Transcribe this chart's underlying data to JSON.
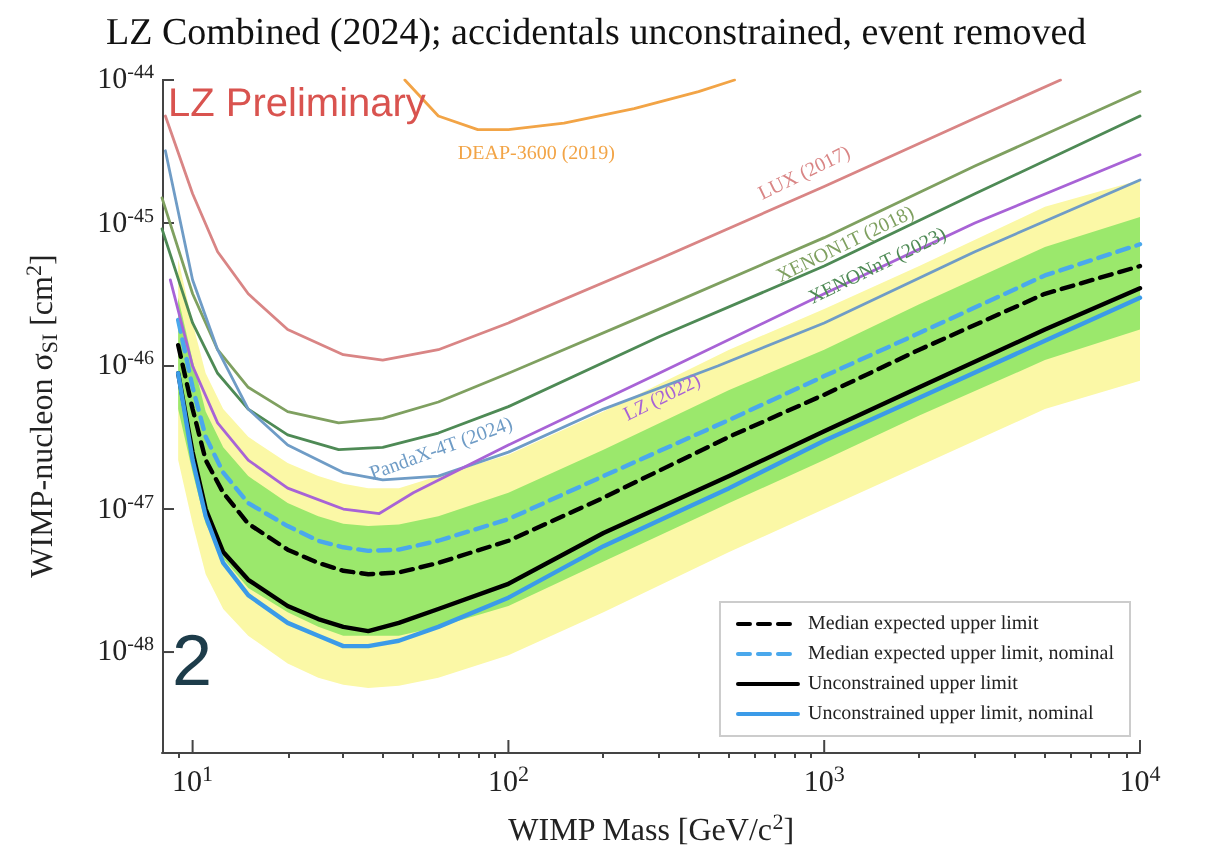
{
  "chart_data": {
    "type": "line",
    "title": "LZ Combined (2024); accidentals unconstrained, event removed",
    "xlabel": "WIMP Mass [GeV/c$^{2}$]",
    "ylabel": "WIMP-nucleon σ$_{SI}$ [cm$^{2}$]",
    "log": "xy",
    "grid": false,
    "legend": "bottom right",
    "marker": "none",
    "xlim": [
      8,
      10000
    ],
    "xticks": [
      {
        "value": 10,
        "label": "10$^{1}$"
      },
      {
        "value": 100,
        "label": "10$^{2}$"
      },
      {
        "value": 1000,
        "label": "10$^{3}$"
      },
      {
        "value": 10000,
        "label": "10$^{4}$"
      }
    ],
    "ylim": [
      2e-49,
      1e-44
    ],
    "yticks": [
      {
        "value": 1e-48,
        "label": "10$^{-48}$"
      },
      {
        "value": 1e-47,
        "label": "10$^{-47}$"
      },
      {
        "value": 1e-46,
        "label": "10$^{-46}$"
      },
      {
        "value": 1e-45,
        "label": "10$^{-45}$"
      },
      {
        "value": 1e-44,
        "label": "10$^{-44}$"
      }
    ],
    "annotations": [
      "LZ Preliminary",
      "2"
    ],
    "series": [
      {
        "type": "area",
        "color": "#fbf8a6",
        "x": [
          9,
          10,
          11,
          12.5,
          15,
          20,
          25,
          30,
          36,
          45,
          60,
          100,
          200,
          500,
          1000,
          2000,
          5000,
          10000
        ],
        "values": [
          null,
          null,
          null,
          null,
          null,
          null,
          null,
          null,
          null,
          null,
          null,
          null,
          null,
          null,
          null,
          null,
          null,
          null
        ],
        "lower": [
          2.2e-47,
          7.9e-48,
          3.5e-48,
          2e-48,
          1.3e-48,
          8.3e-49,
          6.6e-49,
          5.9e-49,
          5.6e-49,
          5.8e-49,
          6.6e-49,
          9.5e-49,
          1.9e-48,
          5e-48,
          1e-47,
          2e-47,
          5e-47,
          7.9e-47
        ],
        "upper": [
          5.6e-46,
          2e-46,
          8.9e-47,
          5e-47,
          3.2e-47,
          2.1e-47,
          1.7e-47,
          1.5e-47,
          1.4e-47,
          1.4e-47,
          1.7e-47,
          2.4e-47,
          4.8e-47,
          1.3e-46,
          2.5e-46,
          5e-46,
          1.3e-45,
          2e-45
        ]
      },
      {
        "type": "area",
        "color": "#9be86c",
        "x": [
          9,
          10,
          11,
          12.5,
          15,
          20,
          25,
          30,
          36,
          45,
          60,
          100,
          200,
          500,
          1000,
          2000,
          5000,
          10000
        ],
        "values": [
          null,
          null,
          null,
          null,
          null,
          null,
          null,
          null,
          null,
          null,
          null,
          null,
          null,
          null,
          null,
          null,
          null,
          null
        ],
        "lower": [
          5e-47,
          1.8e-47,
          7.9e-48,
          4.5e-48,
          2.8e-48,
          1.9e-48,
          1.5e-48,
          1.3e-48,
          1.3e-48,
          1.3e-48,
          1.5e-48,
          2.1e-48,
          4.3e-48,
          1.1e-47,
          2.2e-47,
          4.5e-47,
          1.1e-46,
          1.8e-46
        ],
        "upper": [
          3e-46,
          1.1e-46,
          4.8e-47,
          2.7e-47,
          1.7e-47,
          1.1e-47,
          8.9e-48,
          7.9e-48,
          7.6e-48,
          7.8e-48,
          8.9e-48,
          1.3e-47,
          2.6e-47,
          6.8e-47,
          1.3e-46,
          2.7e-46,
          6.8e-46,
          1.1e-45
        ]
      },
      {
        "name": "Median expected upper limit",
        "color": "#000000",
        "line_style": "dashed",
        "x": [
          9,
          10,
          11,
          12.5,
          15,
          20,
          25,
          30,
          36,
          45,
          60,
          100,
          200,
          500,
          1000,
          2000,
          5000,
          10000
        ],
        "values": [
          1.4e-46,
          5e-47,
          2.2e-47,
          1.3e-47,
          7.9e-48,
          5.2e-48,
          4.2e-48,
          3.7e-48,
          3.5e-48,
          3.6e-48,
          4.2e-48,
          6e-48,
          1.2e-47,
          3.2e-47,
          6.3e-47,
          1.3e-46,
          3.2e-46,
          5e-46
        ]
      },
      {
        "name": "Median expected upper limit, nominal",
        "color": "#4aa8ec",
        "line_style": "dashed",
        "x": [
          9,
          10,
          11,
          12.5,
          15,
          20,
          25,
          30,
          36,
          45,
          60,
          100,
          200,
          500,
          1000,
          2000,
          5000,
          10000
        ],
        "values": [
          2.1e-46,
          7.1e-47,
          3.2e-47,
          1.8e-47,
          1.1e-47,
          7.6e-48,
          6e-48,
          5.4e-48,
          5.1e-48,
          5.2e-48,
          6e-48,
          8.5e-48,
          1.7e-47,
          4.2e-47,
          8.5e-47,
          1.7e-46,
          4.3e-46,
          7.1e-46
        ]
      },
      {
        "name": "Unconstrained upper limit",
        "color": "#000000",
        "line_style": "solid",
        "x": [
          9,
          10,
          11,
          12.5,
          15,
          20,
          25,
          30,
          36,
          45,
          60,
          100,
          200,
          500,
          1000,
          2000,
          5000,
          10000
        ],
        "values": [
          8.9e-47,
          2.5e-47,
          1e-47,
          5e-48,
          3.2e-48,
          2.1e-48,
          1.7e-48,
          1.5e-48,
          1.4e-48,
          1.6e-48,
          2e-48,
          3e-48,
          6.8e-48,
          1.7e-47,
          3.5e-47,
          7.1e-47,
          1.8e-46,
          3.5e-46
        ]
      },
      {
        "name": "Unconstrained upper limit, nominal",
        "color": "#3b9be8",
        "line_style": "solid",
        "x": [
          9,
          10,
          11,
          12.5,
          15,
          20,
          25,
          30,
          36,
          45,
          60,
          100,
          200,
          500,
          1000,
          2000,
          5000,
          10000
        ],
        "values": [
          8.9e-47,
          2.2e-47,
          8.9e-48,
          4.2e-48,
          2.5e-48,
          1.6e-48,
          1.3e-48,
          1.1e-48,
          1.1e-48,
          1.2e-48,
          1.5e-48,
          2.4e-48,
          5.5e-48,
          1.4e-47,
          3e-47,
          6e-47,
          1.5e-46,
          3e-46
        ]
      },
      {
        "name": "LUX (2017)",
        "color": "#d98585",
        "line_style": "solid",
        "x": [
          8.2,
          10,
          12,
          15,
          20,
          30,
          40,
          60,
          100,
          300,
          1000,
          3000,
          5600
        ],
        "values": [
          5.6e-45,
          1.6e-45,
          6.3e-46,
          3.2e-46,
          1.8e-46,
          1.2e-46,
          1.1e-46,
          1.3e-46,
          2e-46,
          5.6e-46,
          1.8e-45,
          5.4e-45,
          1e-44
        ]
      },
      {
        "name": "XENON1T (2018)",
        "color": "#7fa060",
        "line_style": "solid",
        "x": [
          8,
          10,
          12,
          15,
          20,
          29,
          40,
          60,
          100,
          300,
          1000,
          3000,
          10000
        ],
        "values": [
          1.5e-45,
          3.2e-46,
          1.3e-46,
          7.1e-47,
          4.8e-47,
          4e-47,
          4.3e-47,
          5.6e-47,
          8.9e-47,
          2.5e-46,
          7.9e-46,
          2.5e-45,
          8.3e-45
        ]
      },
      {
        "name": "XENONnT (2023)",
        "color": "#4e8a55",
        "line_style": "solid",
        "x": [
          8,
          10,
          12,
          15,
          20,
          29,
          40,
          60,
          100,
          300,
          1000,
          3000,
          10000
        ],
        "values": [
          9.1e-46,
          2e-46,
          8.9e-47,
          5e-47,
          3.3e-47,
          2.6e-47,
          2.7e-47,
          3.4e-47,
          5.2e-47,
          1.6e-46,
          5e-46,
          1.6e-45,
          5.6e-45
        ]
      },
      {
        "name": "PandaX-4T (2024)",
        "color": "#6f9cc6",
        "line_style": "solid",
        "x": [
          8.2,
          10,
          12,
          15,
          20,
          30,
          40,
          60,
          100,
          200,
          460,
          1000,
          3000,
          10000
        ],
        "values": [
          3.2e-45,
          4e-46,
          1.3e-46,
          5e-47,
          2.8e-47,
          1.8e-47,
          1.6e-47,
          1.7e-47,
          2.5e-47,
          5e-47,
          1e-46,
          2e-46,
          6.3e-46,
          2e-45
        ]
      },
      {
        "name": "LZ (2022)",
        "color": "#a863d6",
        "line_style": "solid",
        "x": [
          8.5,
          10,
          12,
          15,
          20,
          30,
          39,
          50,
          100,
          300,
          1000,
          3000,
          10000
        ],
        "values": [
          4e-46,
          1e-46,
          4e-47,
          2.2e-47,
          1.4e-47,
          1e-47,
          9.3e-48,
          1.3e-47,
          2.8e-47,
          8.9e-47,
          3.2e-46,
          1e-45,
          3e-45
        ]
      },
      {
        "name": "DEAP-3600 (2019)",
        "color": "#f2a446",
        "line_style": "solid",
        "x": [
          47,
          60,
          80,
          100,
          150,
          250,
          400,
          520
        ],
        "values": [
          1e-44,
          5.6e-45,
          4.5e-45,
          4.5e-45,
          5e-45,
          6.3e-45,
          8.3e-45,
          1e-44
        ]
      }
    ]
  }
}
